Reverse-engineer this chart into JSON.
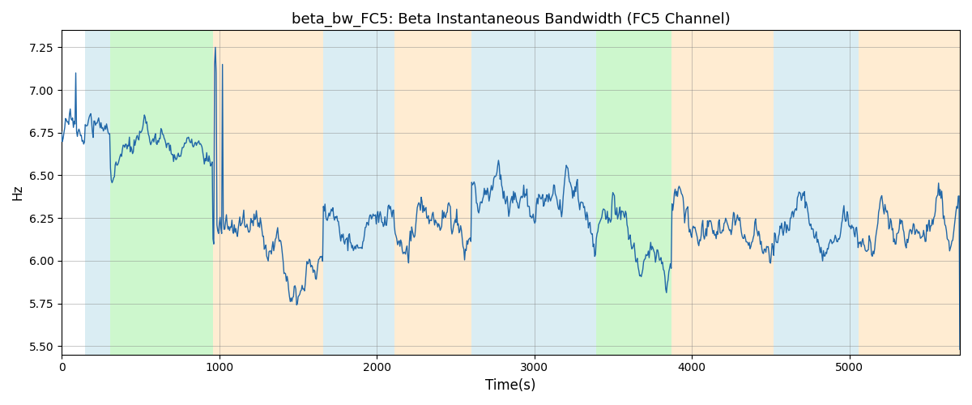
{
  "title": "beta_bw_FC5: Beta Instantaneous Bandwidth (FC5 Channel)",
  "xlabel": "Time(s)",
  "ylabel": "Hz",
  "xlim": [
    0,
    5700
  ],
  "ylim": [
    5.45,
    7.35
  ],
  "line_color": "#2167a8",
  "line_width": 1.0,
  "background_color": "#ffffff",
  "colored_bands": [
    {
      "xmin": 150,
      "xmax": 310,
      "color": "#add8e6",
      "alpha": 0.45
    },
    {
      "xmin": 310,
      "xmax": 960,
      "color": "#90ee90",
      "alpha": 0.45
    },
    {
      "xmin": 960,
      "xmax": 1660,
      "color": "#ffdead",
      "alpha": 0.55
    },
    {
      "xmin": 1660,
      "xmax": 2110,
      "color": "#add8e6",
      "alpha": 0.45
    },
    {
      "xmin": 2110,
      "xmax": 2600,
      "color": "#ffdead",
      "alpha": 0.55
    },
    {
      "xmin": 2600,
      "xmax": 3390,
      "color": "#add8e6",
      "alpha": 0.45
    },
    {
      "xmin": 3390,
      "xmax": 3870,
      "color": "#90ee90",
      "alpha": 0.45
    },
    {
      "xmin": 3870,
      "xmax": 4070,
      "color": "#ffdead",
      "alpha": 0.55
    },
    {
      "xmin": 4070,
      "xmax": 4520,
      "color": "#ffdead",
      "alpha": 0.55
    },
    {
      "xmin": 4520,
      "xmax": 5060,
      "color": "#add8e6",
      "alpha": 0.45
    },
    {
      "xmin": 5060,
      "xmax": 5700,
      "color": "#ffdead",
      "alpha": 0.55
    }
  ],
  "title_fontsize": 13,
  "seed": 17
}
